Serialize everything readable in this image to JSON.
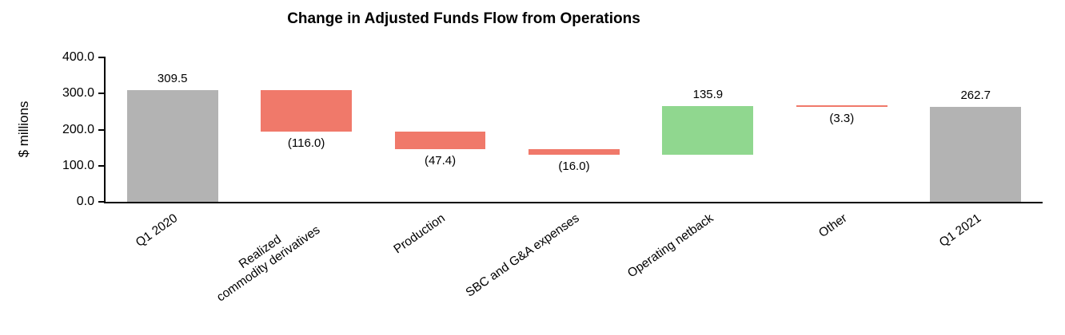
{
  "chart_data": {
    "type": "bar",
    "subtype": "waterfall",
    "title": "Change in Adjusted Funds Flow from Operations",
    "xlabel": "",
    "ylabel": "$ millions",
    "ylim": [
      0,
      400
    ],
    "ytick_values": [
      0,
      100,
      200,
      300,
      400
    ],
    "ytick_labels": [
      "0.0",
      "100.0",
      "200.0",
      "300.0",
      "400.0"
    ],
    "grid": false,
    "legend": "none",
    "categories": [
      "Q1 2020",
      "Realized\ncommodity derivatives",
      "Production",
      "SBC and G&A expenses",
      "Operating netback",
      "Other",
      "Q1 2021"
    ],
    "values": [
      309.5,
      -116.0,
      -47.4,
      -16.0,
      135.9,
      -3.3,
      262.7
    ],
    "bar_kinds": [
      "total",
      "decrease",
      "decrease",
      "decrease",
      "increase",
      "decrease",
      "total"
    ],
    "labels": [
      "309.5",
      "(116.0)",
      "(47.4)",
      "(16.0)",
      "135.9",
      "(3.3)",
      "262.7"
    ],
    "running_totals": [
      309.5,
      193.5,
      146.1,
      130.1,
      266.0,
      262.7,
      262.7
    ],
    "colors": {
      "total": "#b3b3b3",
      "decrease": "#f0796a",
      "increase": "#90d78f",
      "axis": "#000000",
      "text": "#000000",
      "background": "#ffffff"
    }
  }
}
